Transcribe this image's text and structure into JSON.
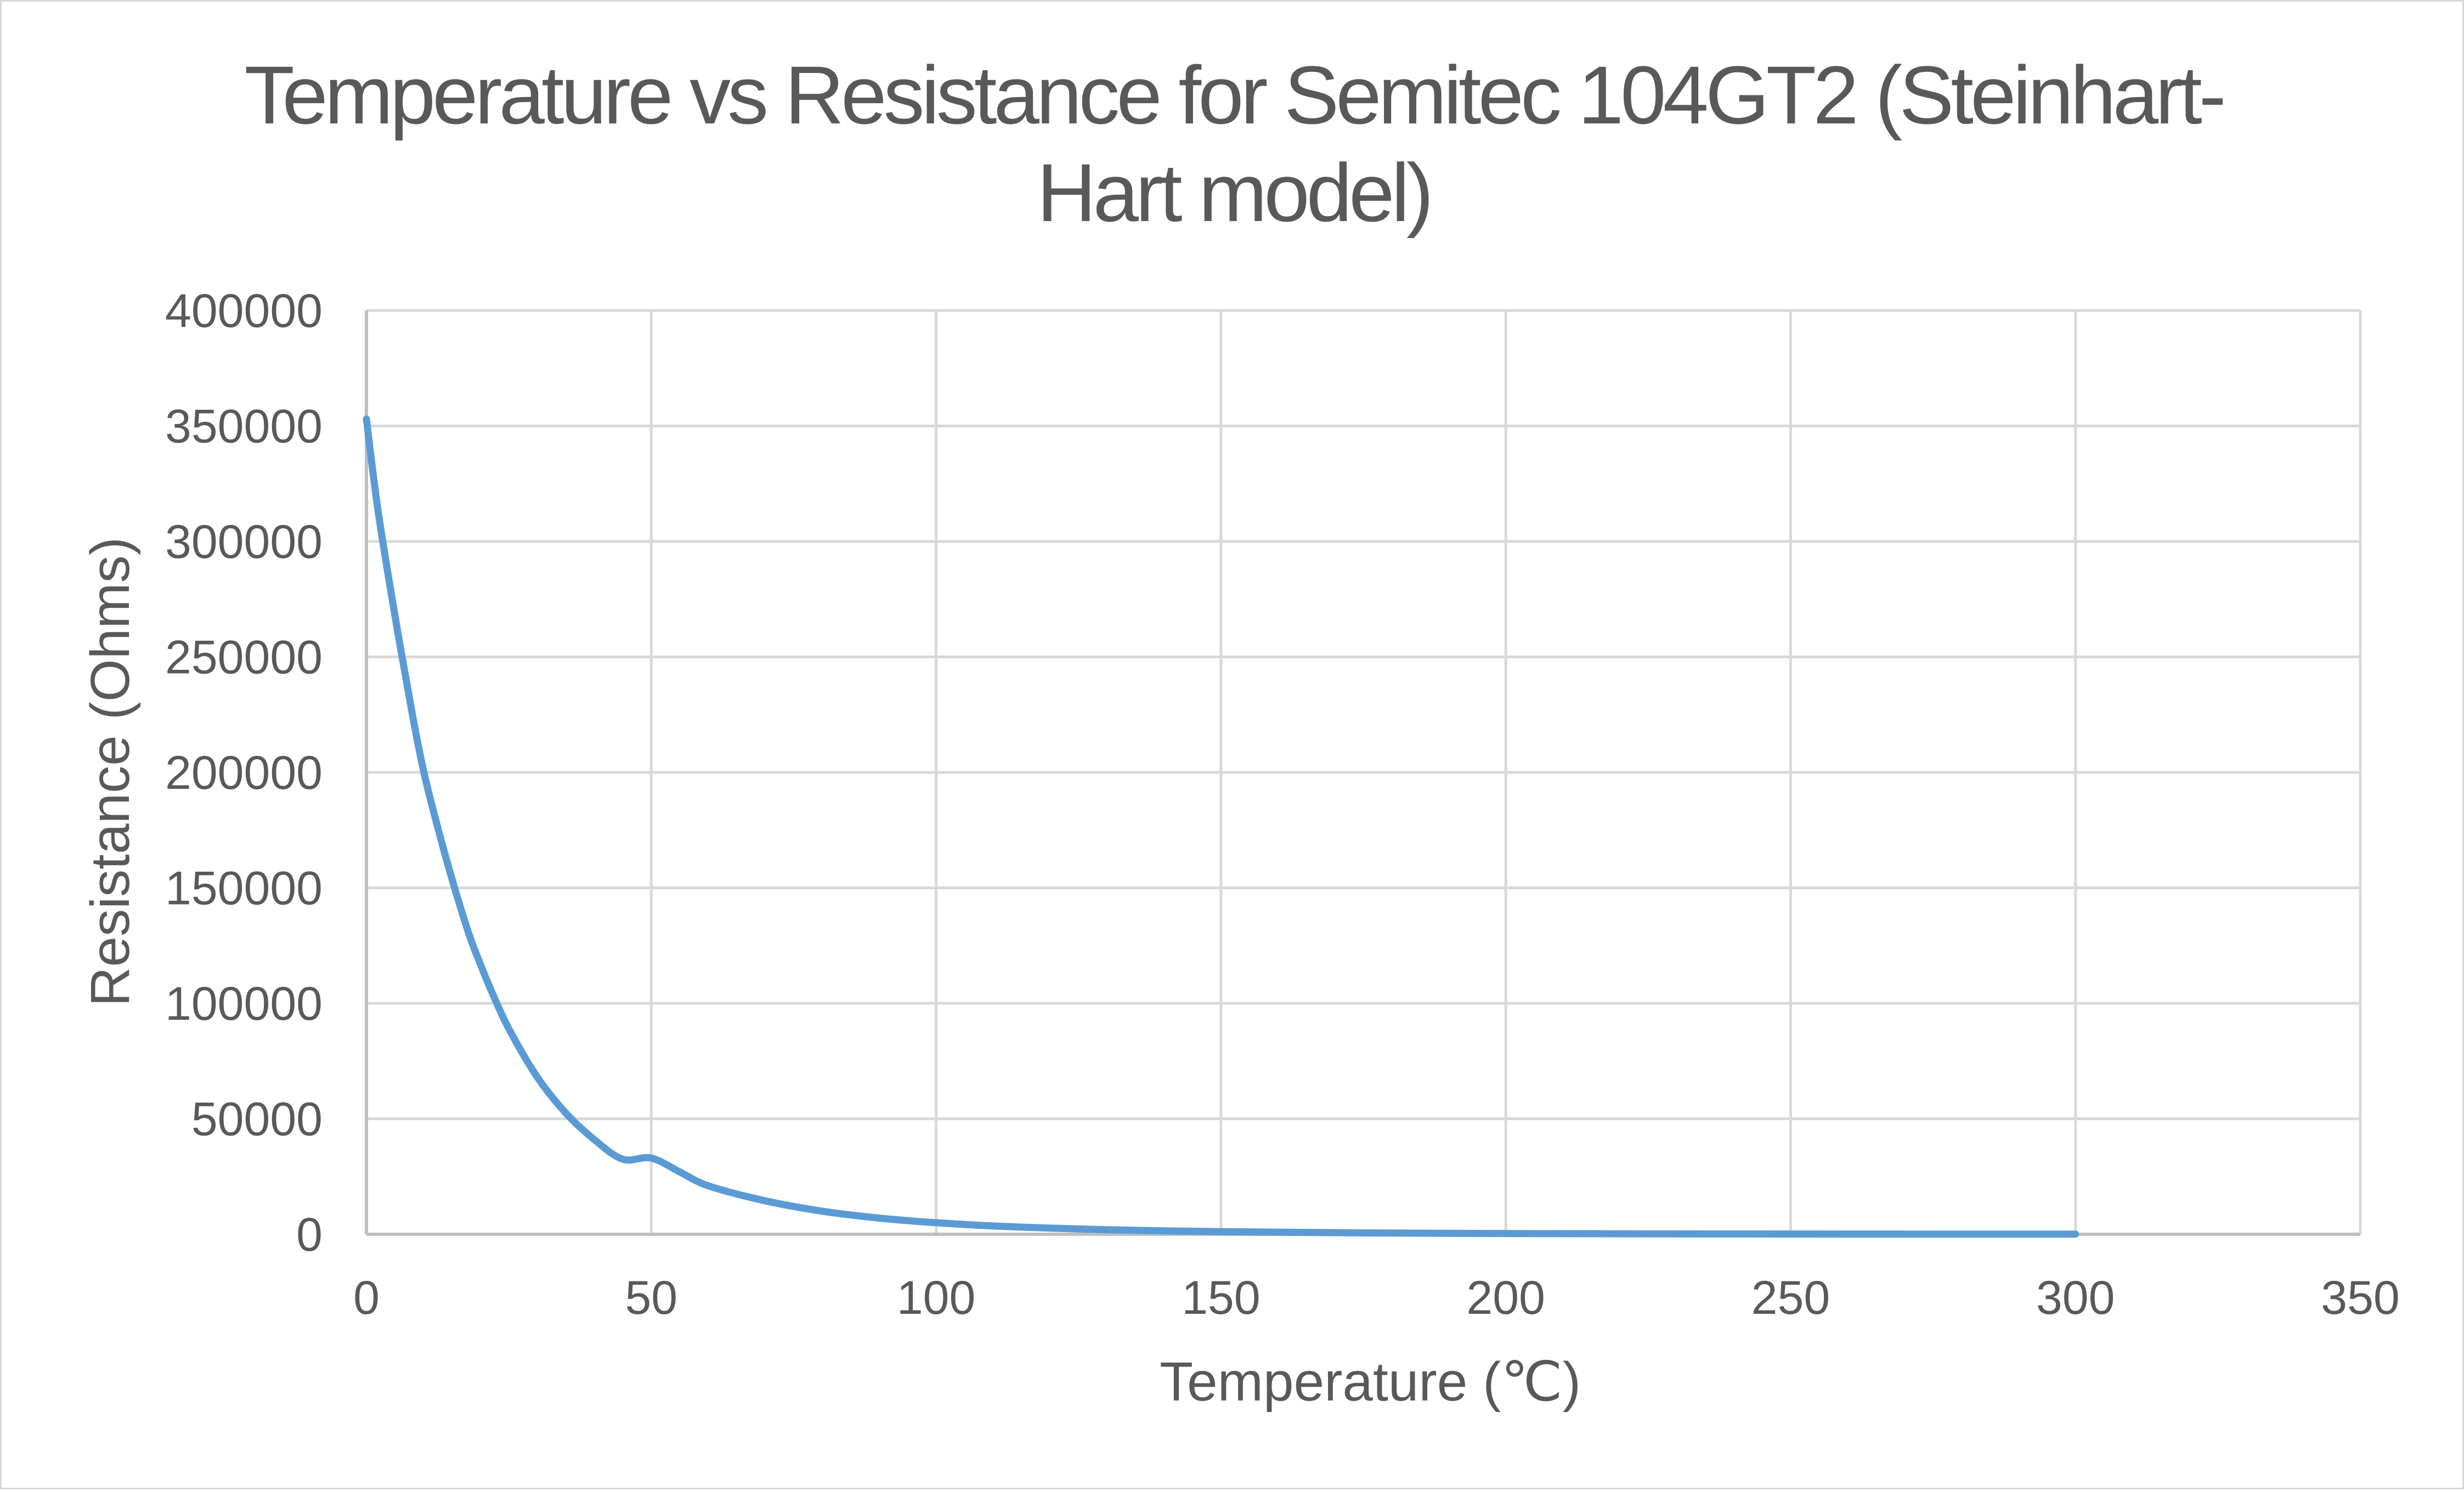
{
  "chart_data": {
    "type": "line",
    "title_lines": [
      "Temperature vs Resistance for Semitec 104GT2 (Steinhart-",
      "Hart model)"
    ],
    "xlabel": "Temperature (℃)",
    "ylabel": "Resistance (Ohms)",
    "xlim": [
      0,
      350
    ],
    "ylim": [
      0,
      400000
    ],
    "x_ticks": [
      0,
      50,
      100,
      150,
      200,
      250,
      300,
      350
    ],
    "y_ticks": [
      0,
      50000,
      100000,
      150000,
      200000,
      250000,
      300000,
      350000,
      400000
    ],
    "x_tick_labels": [
      "0",
      "50",
      "100",
      "150",
      "200",
      "250",
      "300",
      "350"
    ],
    "y_tick_labels": [
      "0",
      "50000",
      "100000",
      "150000",
      "200000",
      "250000",
      "300000",
      "350000",
      "400000"
    ],
    "grid": true,
    "legend": false,
    "series_color": "#5b9bd5",
    "grid_color": "#d9d9d9",
    "axis_color": "#bfbfbf",
    "series": [
      {
        "x": [
          0,
          2,
          5,
          8,
          10,
          12,
          15,
          18,
          20,
          22,
          25,
          30,
          35,
          40,
          45,
          50,
          55,
          60,
          70,
          80,
          90,
          100,
          110,
          120,
          130,
          140,
          150,
          175,
          200,
          225,
          250,
          275,
          300
        ],
        "values": [
          353000,
          314000,
          268000,
          226000,
          201000,
          181000,
          154000,
          130000,
          117000,
          105000,
          89000,
          68000,
          52500,
          41000,
          32500,
          33000,
          27000,
          21000,
          14500,
          10000,
          7000,
          5000,
          3600,
          2650,
          1980,
          1500,
          1150,
          600,
          340,
          200,
          125,
          80,
          55
        ]
      }
    ]
  }
}
